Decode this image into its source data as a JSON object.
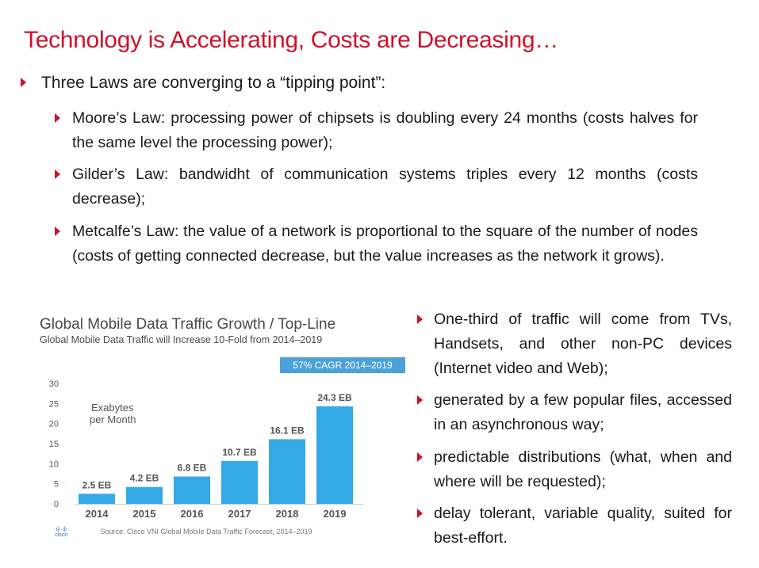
{
  "title": "Technology is Accelerating, Costs are Decreasing…",
  "intro": "Three Laws are converging to a “tipping point”:",
  "laws": [
    "Moore’s Law: processing power of chipsets is doubling every 24 months (costs halves for the same level the processing power);",
    "Gilder’s Law: bandwidht of communication systems triples every 12 months (costs decrease);",
    "Metcalfe’s Law: the value of a network is proportional to the square of the number of nodes (costs of getting connected decrease, but the value increases as the network it grows)."
  ],
  "right_points": [
    "One-third of traffic will come from TVs, Handsets, and other non-PC devices (Internet video and Web);",
    "generated by a few popular files, accessed in an asynchronous way;",
    "predictable distributions (what, when and where will be requested);",
    "delay tolerant, variable quality, suited for best-effort."
  ],
  "chart_data": {
    "type": "bar",
    "title": "Global Mobile Data Traffic Growth / Top-Line",
    "subtitle": "Global Mobile Data Traffic will Increase 10-Fold from 2014–2019",
    "badge": "57% CAGR 2014–2019",
    "ylabel_line1": "Exabytes",
    "ylabel_line2": "per Month",
    "categories": [
      "2014",
      "2015",
      "2016",
      "2017",
      "2018",
      "2019"
    ],
    "values": [
      2.5,
      4.2,
      6.8,
      10.7,
      16.1,
      24.3
    ],
    "data_labels": [
      "2.5 EB",
      "4.2 EB",
      "6.8 EB",
      "10.7 EB",
      "16.1 EB",
      "24.3 EB"
    ],
    "yticks": [
      0,
      5,
      10,
      15,
      20,
      25,
      30
    ],
    "ylim": [
      0,
      30
    ],
    "bar_color": "#33a9e6",
    "source": "Source: Cisco VNI Global Mobile Data Traffic Forecast, 2014–2019",
    "logo_text": "cisco"
  },
  "colors": {
    "accent": "#d0112b",
    "text": "#1a1a1a"
  }
}
